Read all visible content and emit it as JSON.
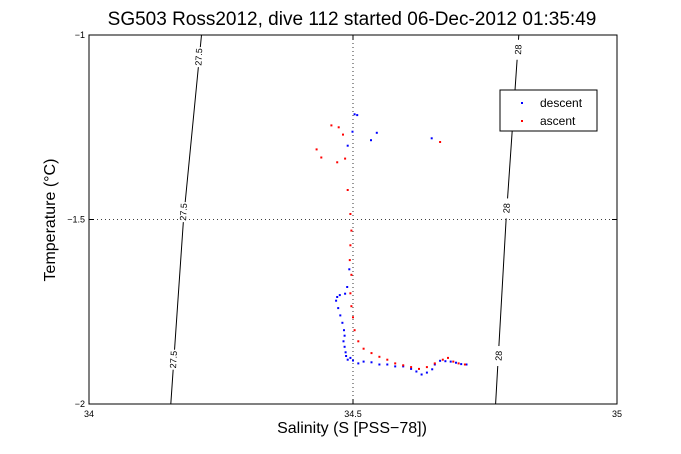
{
  "chart_data": {
    "type": "scatter",
    "title": "SG503 Ross2012, dive 112 started 06-Dec-2012 01:35:49",
    "xlabel": "Salinity (S [PSS−78])",
    "ylabel": "Temperature (°C)",
    "xlim": [
      34,
      35
    ],
    "ylim": [
      -2,
      -1
    ],
    "x_ticks": [
      34,
      34.5,
      35
    ],
    "x_tick_labels": [
      "34",
      "34.5",
      "35"
    ],
    "y_ticks": [
      -2,
      -1.5,
      -1
    ],
    "y_tick_labels": [
      "−2",
      "−1.5",
      "−1"
    ],
    "grid": "dotted at 34.5 and -1.5",
    "legend_position": "top-right",
    "contours": [
      {
        "name": "27.5",
        "points": [
          [
            34.213,
            -1.0
          ],
          [
            34.179,
            -1.5
          ],
          [
            34.155,
            -2.0
          ]
        ],
        "labels": [
          {
            "text": "27.5",
            "x": 34.208,
            "y": -1.06
          },
          {
            "text": "27.5",
            "x": 34.179,
            "y": -1.48
          },
          {
            "text": "27.5",
            "x": 34.16,
            "y": -1.88
          }
        ]
      },
      {
        "name": "28",
        "points": [
          [
            34.814,
            -1.0
          ],
          [
            34.79,
            -1.5
          ],
          [
            34.77,
            -2.0
          ]
        ],
        "labels": [
          {
            "text": "28",
            "x": 34.813,
            "y": -1.04
          },
          {
            "text": "28",
            "x": 34.791,
            "y": -1.47
          },
          {
            "text": "28",
            "x": 34.776,
            "y": -1.87
          }
        ]
      }
    ],
    "series": [
      {
        "name": "descent",
        "color": "#0000ff",
        "points": [
          [
            34.503,
            -1.215
          ],
          [
            34.508,
            -1.217
          ],
          [
            34.499,
            -1.262
          ],
          [
            34.49,
            -1.3
          ],
          [
            34.545,
            -1.265
          ],
          [
            34.649,
            -1.28
          ],
          [
            34.534,
            -1.285
          ],
          [
            34.493,
            -1.635
          ],
          [
            34.489,
            -1.683
          ],
          [
            34.485,
            -1.701
          ],
          [
            34.475,
            -1.705
          ],
          [
            34.47,
            -1.71
          ],
          [
            34.468,
            -1.72
          ],
          [
            34.472,
            -1.74
          ],
          [
            34.476,
            -1.76
          ],
          [
            34.48,
            -1.78
          ],
          [
            34.483,
            -1.8
          ],
          [
            34.484,
            -1.815
          ],
          [
            34.482,
            -1.83
          ],
          [
            34.484,
            -1.845
          ],
          [
            34.486,
            -1.86
          ],
          [
            34.487,
            -1.87
          ],
          [
            34.49,
            -1.88
          ],
          [
            34.495,
            -1.875
          ],
          [
            34.5,
            -1.882
          ],
          [
            34.51,
            -1.89
          ],
          [
            34.52,
            -1.885
          ],
          [
            34.535,
            -1.887
          ],
          [
            34.55,
            -1.893
          ],
          [
            34.565,
            -1.893
          ],
          [
            34.58,
            -1.898
          ],
          [
            34.595,
            -1.898
          ],
          [
            34.61,
            -1.905
          ],
          [
            34.62,
            -1.912
          ],
          [
            34.63,
            -1.92
          ],
          [
            34.64,
            -1.915
          ],
          [
            34.65,
            -1.906
          ],
          [
            34.655,
            -1.893
          ],
          [
            34.665,
            -1.883
          ],
          [
            34.675,
            -1.884
          ],
          [
            34.685,
            -1.885
          ],
          [
            34.695,
            -1.888
          ],
          [
            34.705,
            -1.892
          ],
          [
            34.715,
            -1.893
          ]
        ]
      },
      {
        "name": "ascent",
        "color": "#ff0000",
        "points": [
          [
            34.459,
            -1.245
          ],
          [
            34.473,
            -1.25
          ],
          [
            34.481,
            -1.27
          ],
          [
            34.485,
            -1.335
          ],
          [
            34.47,
            -1.345
          ],
          [
            34.431,
            -1.31
          ],
          [
            34.44,
            -1.332
          ],
          [
            34.49,
            -1.42
          ],
          [
            34.495,
            -1.485
          ],
          [
            34.497,
            -1.53
          ],
          [
            34.495,
            -1.57
          ],
          [
            34.494,
            -1.61
          ],
          [
            34.497,
            -1.65
          ],
          [
            34.495,
            -1.7
          ],
          [
            34.497,
            -1.735
          ],
          [
            34.5,
            -1.765
          ],
          [
            34.503,
            -1.8
          ],
          [
            34.51,
            -1.83
          ],
          [
            34.52,
            -1.85
          ],
          [
            34.535,
            -1.862
          ],
          [
            34.55,
            -1.872
          ],
          [
            34.565,
            -1.88
          ],
          [
            34.58,
            -1.89
          ],
          [
            34.595,
            -1.895
          ],
          [
            34.61,
            -1.9
          ],
          [
            34.625,
            -1.905
          ],
          [
            34.64,
            -1.9
          ],
          [
            34.655,
            -1.89
          ],
          [
            34.67,
            -1.88
          ],
          [
            34.68,
            -1.875
          ],
          [
            34.69,
            -1.885
          ],
          [
            34.7,
            -1.89
          ],
          [
            34.712,
            -1.893
          ],
          [
            34.665,
            -1.29
          ]
        ]
      }
    ]
  }
}
